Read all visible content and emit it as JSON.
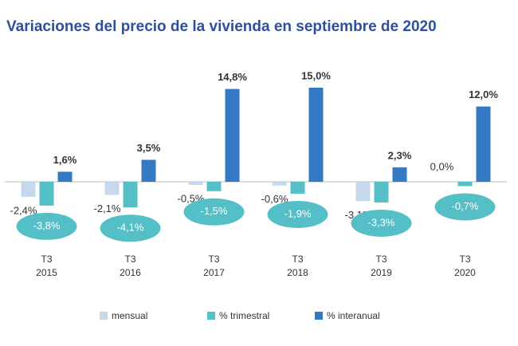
{
  "chart_data": {
    "type": "bar",
    "title": "Variaciones del precio de la vivienda en septiembre de 2020",
    "categories": [
      "T3 2015",
      "T3 2016",
      "T3 2017",
      "T3 2018",
      "T3 2019",
      "T3 2020"
    ],
    "series": [
      {
        "name": "mensual",
        "color": "#c5d8ee",
        "values": [
          -2.4,
          -2.1,
          -0.5,
          -0.6,
          -3.1,
          0.0
        ],
        "value_labels": [
          "-2,4%",
          "-2,1%",
          "-0,5%",
          "-0,6%",
          "-3,1%",
          "0,0%"
        ]
      },
      {
        "name": "% trimestral",
        "color": "#55bfc7",
        "values": [
          -3.8,
          -4.1,
          -1.5,
          -1.9,
          -3.3,
          -0.7
        ],
        "value_labels": [
          "-3,8%",
          "-4,1%",
          "-1,5%",
          "-1,9%",
          "-3,3%",
          "-0,7%"
        ]
      },
      {
        "name": "% interanual",
        "color": "#3479c3",
        "values": [
          1.6,
          3.5,
          14.8,
          15.0,
          2.3,
          12.0
        ],
        "value_labels": [
          "1,6%",
          "3,5%",
          "14,8%",
          "15,0%",
          "2,3%",
          "12,0%"
        ]
      }
    ],
    "legend": "bottom"
  }
}
